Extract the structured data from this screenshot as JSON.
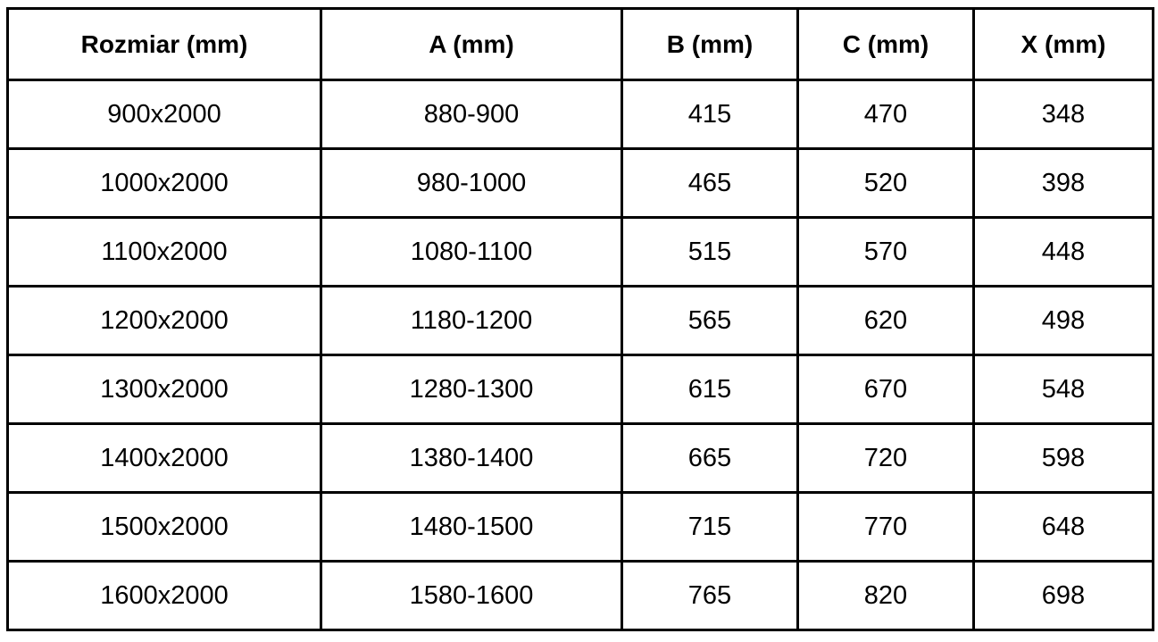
{
  "table": {
    "columns": [
      "Rozmiar (mm)",
      "A (mm)",
      "B (mm)",
      "C (mm)",
      "X (mm)"
    ],
    "rows": [
      [
        "900x2000",
        "880-900",
        "415",
        "470",
        "348"
      ],
      [
        "1000x2000",
        "980-1000",
        "465",
        "520",
        "398"
      ],
      [
        "1100x2000",
        "1080-1100",
        "515",
        "570",
        "448"
      ],
      [
        "1200x2000",
        "1180-1200",
        "565",
        "620",
        "498"
      ],
      [
        "1300x2000",
        "1280-1300",
        "615",
        "670",
        "548"
      ],
      [
        "1400x2000",
        "1380-1400",
        "665",
        "720",
        "598"
      ],
      [
        "1500x2000",
        "1480-1500",
        "715",
        "770",
        "648"
      ],
      [
        "1600x2000",
        "1580-1600",
        "765",
        "820",
        "698"
      ]
    ],
    "colors": {
      "border": "#000000",
      "background": "#ffffff",
      "text": "#000000"
    }
  },
  "chart_data": {
    "type": "table",
    "title": "",
    "columns": [
      "Rozmiar (mm)",
      "A (mm)",
      "B (mm)",
      "C (mm)",
      "X (mm)"
    ],
    "rows": [
      [
        "900x2000",
        "880-900",
        415,
        470,
        348
      ],
      [
        "1000x2000",
        "980-1000",
        465,
        520,
        398
      ],
      [
        "1100x2000",
        "1080-1100",
        515,
        570,
        448
      ],
      [
        "1200x2000",
        "1180-1200",
        565,
        620,
        498
      ],
      [
        "1300x2000",
        "1280-1300",
        615,
        670,
        548
      ],
      [
        "1400x2000",
        "1380-1400",
        665,
        720,
        598
      ],
      [
        "1500x2000",
        "1480-1500",
        715,
        770,
        648
      ],
      [
        "1600x2000",
        "1580-1600",
        765,
        820,
        698
      ]
    ]
  }
}
